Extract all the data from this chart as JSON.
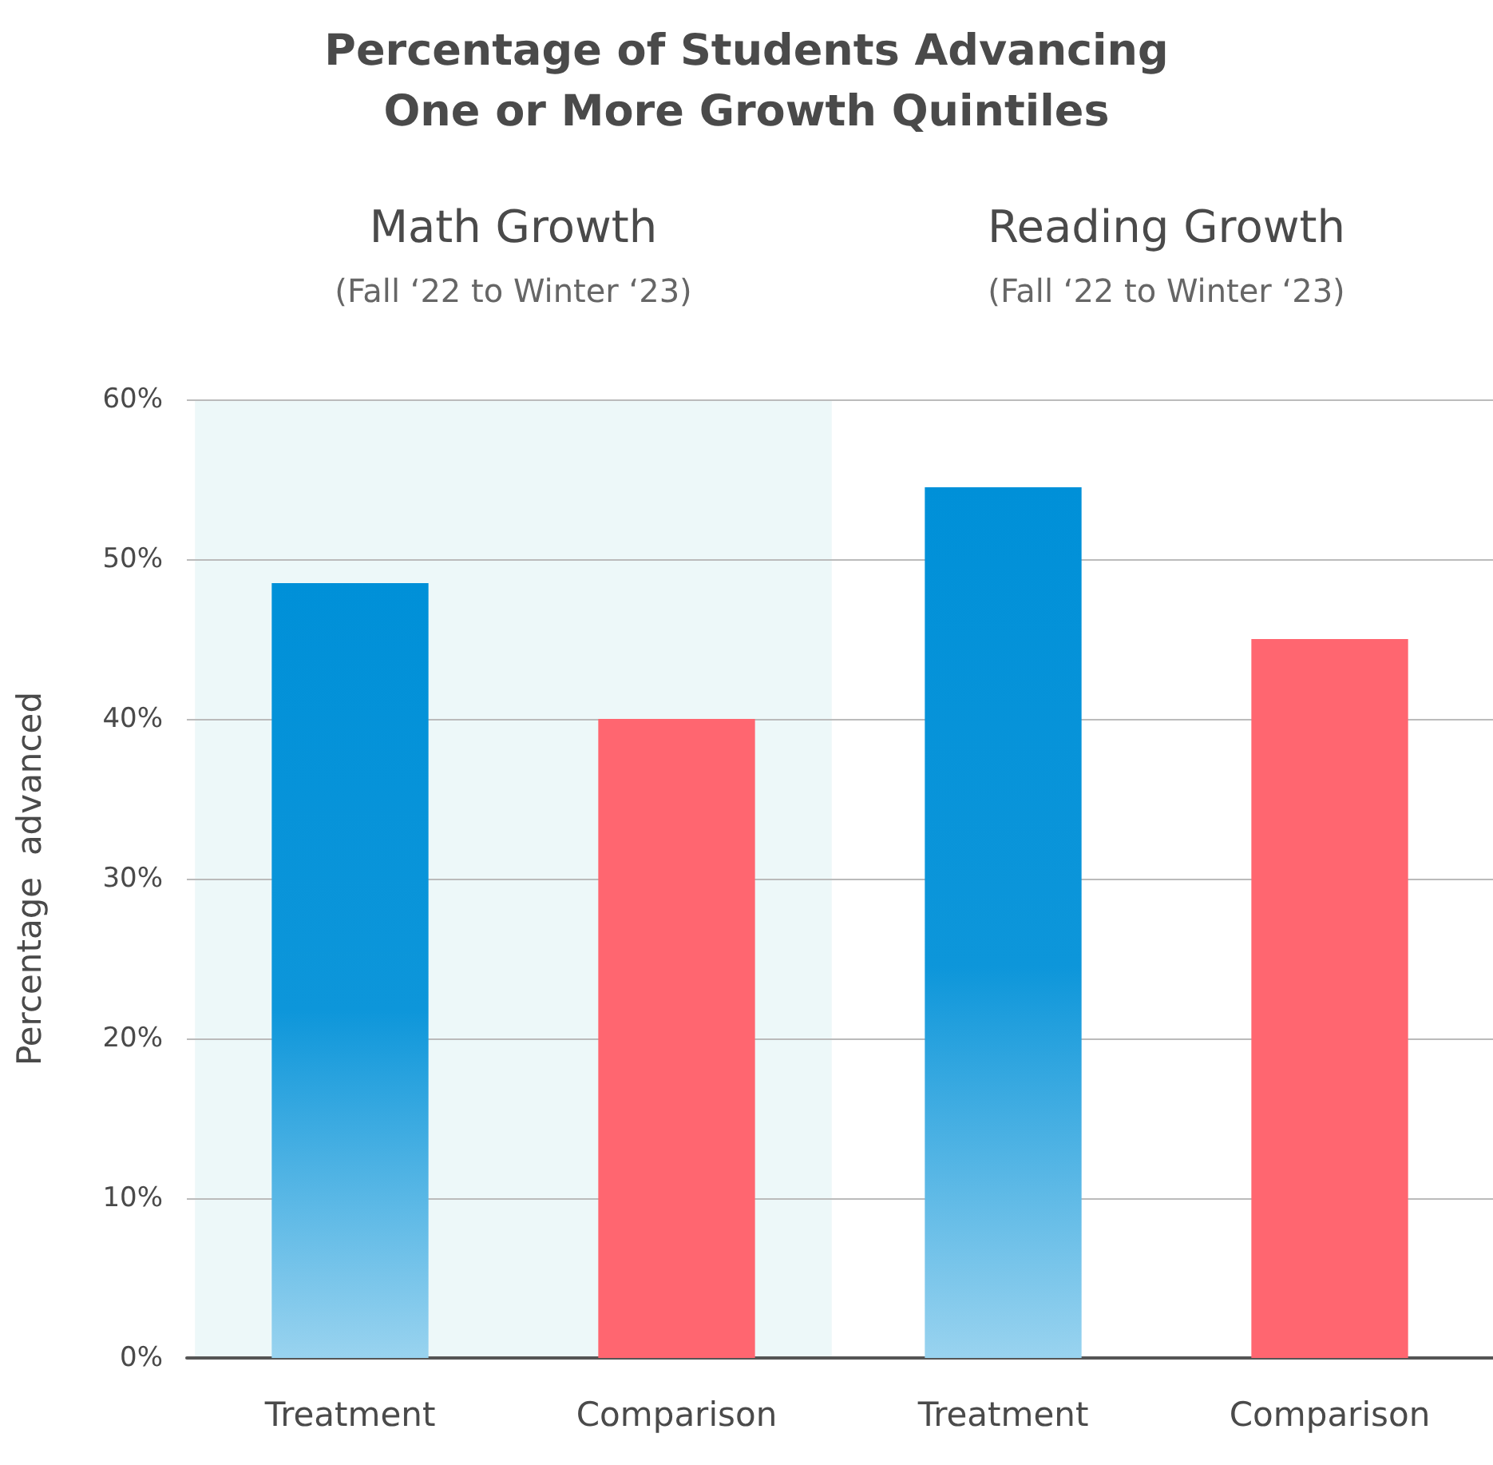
{
  "chart_data": {
    "type": "bar",
    "title": "Percentage of Students Advancing\nOne or More Growth Quintiles",
    "ylabel": "Percentage  advanced",
    "categories": [
      "Treatment",
      "Comparison",
      "Treatment",
      "Comparison"
    ],
    "values": [
      48.5,
      40,
      54.5,
      45
    ],
    "colors": [
      "#0090d8",
      "#ff6670",
      "#0090d8",
      "#ff6670"
    ],
    "ylim": [
      0,
      60
    ],
    "yticks": [
      {
        "value": 0,
        "label": "0%"
      },
      {
        "value": 10,
        "label": "10%"
      },
      {
        "value": 20,
        "label": "20%"
      },
      {
        "value": 30,
        "label": "30%"
      },
      {
        "value": 40,
        "label": "40%"
      },
      {
        "value": 50,
        "label": "50%"
      },
      {
        "value": 60,
        "label": "60%"
      }
    ],
    "grid": "y",
    "annotations": [
      "Math Growth",
      "(Fall ‘22 to Winter ‘23)",
      "Reading Growth",
      "(Fall ‘22 to Winter ‘23)"
    ],
    "bands": [
      {
        "axis": "x",
        "from": "Treatment",
        "to": "Comparison",
        "color": "#edf8f9"
      }
    ]
  }
}
